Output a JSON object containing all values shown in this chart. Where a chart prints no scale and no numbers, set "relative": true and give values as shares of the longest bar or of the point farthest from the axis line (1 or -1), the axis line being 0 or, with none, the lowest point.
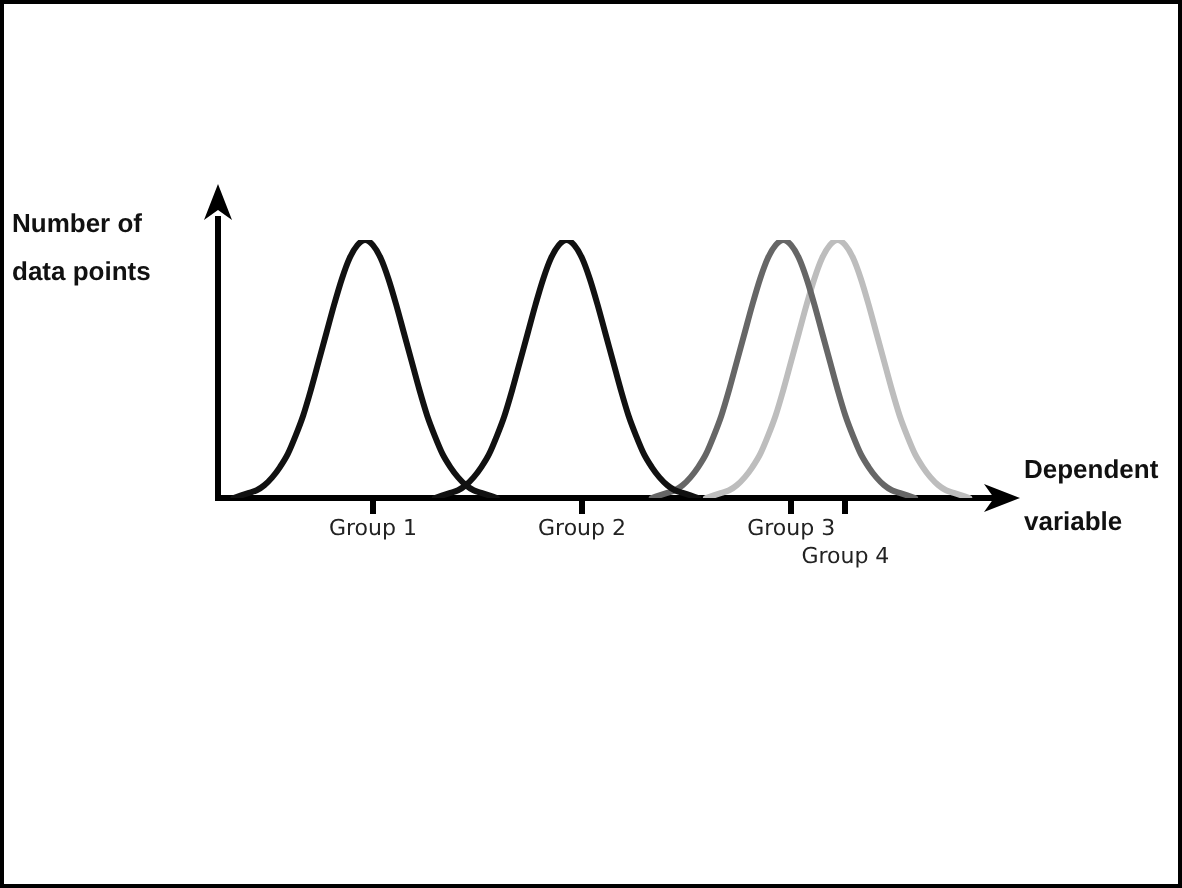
{
  "chart_data": {
    "type": "line",
    "relative": true,
    "xlabel": "Dependent variable",
    "ylabel": "Number of data points",
    "categories": [
      null,
      null,
      null,
      null,
      null,
      null,
      null,
      null,
      null,
      null,
      null,
      null,
      null,
      null,
      null,
      null,
      null,
      null,
      null,
      null,
      "Group 1",
      null,
      null,
      null,
      null,
      null,
      null,
      null,
      null,
      null,
      null,
      null,
      null,
      null,
      null,
      null,
      null,
      null,
      null,
      null,
      null,
      null,
      null,
      null,
      null,
      null,
      null,
      "Group 2",
      null,
      null,
      null,
      null,
      null,
      null,
      null,
      null,
      null,
      null,
      null,
      null,
      null,
      null,
      null,
      null,
      null,
      null,
      null,
      null,
      null,
      null,
      null,
      null,
      null,
      null,
      "Group 3",
      null,
      null,
      null,
      null,
      null,
      null,
      "Group 4",
      null,
      null,
      null,
      null,
      null,
      null,
      null,
      null,
      null,
      null,
      null,
      null,
      null,
      null,
      null,
      null,
      null,
      null,
      null,
      null,
      null
    ],
    "series": [
      {
        "color": "#111111",
        "values": [
          null,
          null,
          0,
          0.01,
          0.02,
          0.03,
          0.05,
          0.08,
          0.12,
          0.17,
          0.24,
          0.32,
          0.42,
          0.53,
          0.64,
          0.75,
          0.85,
          0.93,
          0.98,
          1,
          0.98,
          0.93,
          0.85,
          0.75,
          0.64,
          0.53,
          0.42,
          0.32,
          0.24,
          0.17,
          0.12,
          0.08,
          0.05,
          0.03,
          0.02,
          0.01,
          0,
          null,
          null,
          null,
          null,
          null,
          null,
          null,
          null,
          null,
          null,
          null,
          null,
          null,
          null,
          null,
          null,
          null,
          null,
          null,
          null,
          null,
          null,
          null,
          null,
          null,
          null,
          null,
          null,
          null,
          null,
          null,
          null,
          null,
          null,
          null,
          null,
          null,
          null,
          null,
          null,
          null,
          null,
          null,
          null,
          null,
          null,
          null,
          null,
          null,
          null,
          null,
          null,
          null,
          null,
          null,
          null,
          null,
          null,
          null,
          null,
          null,
          null,
          null,
          null,
          null,
          null
        ]
      },
      {
        "color": "#111111",
        "values": [
          null,
          null,
          null,
          null,
          null,
          null,
          null,
          null,
          null,
          null,
          null,
          null,
          null,
          null,
          null,
          null,
          null,
          null,
          null,
          null,
          null,
          null,
          null,
          null,
          null,
          null,
          null,
          null,
          0,
          0.01,
          0.02,
          0.03,
          0.05,
          0.08,
          0.12,
          0.17,
          0.24,
          0.32,
          0.42,
          0.53,
          0.64,
          0.75,
          0.85,
          0.93,
          0.98,
          1,
          0.98,
          0.93,
          0.85,
          0.75,
          0.64,
          0.53,
          0.42,
          0.32,
          0.24,
          0.17,
          0.12,
          0.08,
          0.05,
          0.03,
          0.02,
          0.01,
          0,
          null,
          null,
          null,
          null,
          null,
          null,
          null,
          null,
          null,
          null,
          null,
          null,
          null,
          null,
          null,
          null,
          null,
          null,
          null,
          null,
          null,
          null,
          null,
          null,
          null,
          null,
          null,
          null,
          null,
          null,
          null,
          null,
          null,
          null,
          null,
          null,
          null,
          null,
          null,
          null
        ]
      },
      {
        "color": "#666666",
        "values": [
          null,
          null,
          null,
          null,
          null,
          null,
          null,
          null,
          null,
          null,
          null,
          null,
          null,
          null,
          null,
          null,
          null,
          null,
          null,
          null,
          null,
          null,
          null,
          null,
          null,
          null,
          null,
          null,
          null,
          null,
          null,
          null,
          null,
          null,
          null,
          null,
          null,
          null,
          null,
          null,
          null,
          null,
          null,
          null,
          null,
          null,
          null,
          null,
          null,
          null,
          null,
          null,
          null,
          null,
          null,
          null,
          0,
          0.01,
          0.02,
          0.03,
          0.05,
          0.08,
          0.12,
          0.17,
          0.24,
          0.32,
          0.42,
          0.53,
          0.64,
          0.75,
          0.85,
          0.93,
          0.98,
          1,
          0.98,
          0.93,
          0.85,
          0.75,
          0.64,
          0.53,
          0.42,
          0.32,
          0.24,
          0.17,
          0.12,
          0.08,
          0.05,
          0.03,
          0.02,
          0.01,
          0,
          null,
          null,
          null,
          null,
          null,
          null,
          null,
          null,
          null,
          null,
          null,
          null
        ]
      },
      {
        "color": "#bdbdbd",
        "values": [
          null,
          null,
          null,
          null,
          null,
          null,
          null,
          null,
          null,
          null,
          null,
          null,
          null,
          null,
          null,
          null,
          null,
          null,
          null,
          null,
          null,
          null,
          null,
          null,
          null,
          null,
          null,
          null,
          null,
          null,
          null,
          null,
          null,
          null,
          null,
          null,
          null,
          null,
          null,
          null,
          null,
          null,
          null,
          null,
          null,
          null,
          null,
          null,
          null,
          null,
          null,
          null,
          null,
          null,
          null,
          null,
          null,
          null,
          null,
          null,
          null,
          null,
          null,
          0,
          0.01,
          0.02,
          0.03,
          0.05,
          0.08,
          0.12,
          0.17,
          0.24,
          0.32,
          0.42,
          0.53,
          0.64,
          0.75,
          0.85,
          0.93,
          0.98,
          1,
          0.98,
          0.93,
          0.85,
          0.75,
          0.64,
          0.53,
          0.42,
          0.32,
          0.24,
          0.17,
          0.12,
          0.08,
          0.05,
          0.03,
          0.02,
          0.01,
          0,
          null,
          null,
          null,
          null,
          null
        ]
      }
    ],
    "legend": false,
    "grid": false,
    "tick_labels": "x",
    "marker": "none",
    "line_style": "solid"
  }
}
